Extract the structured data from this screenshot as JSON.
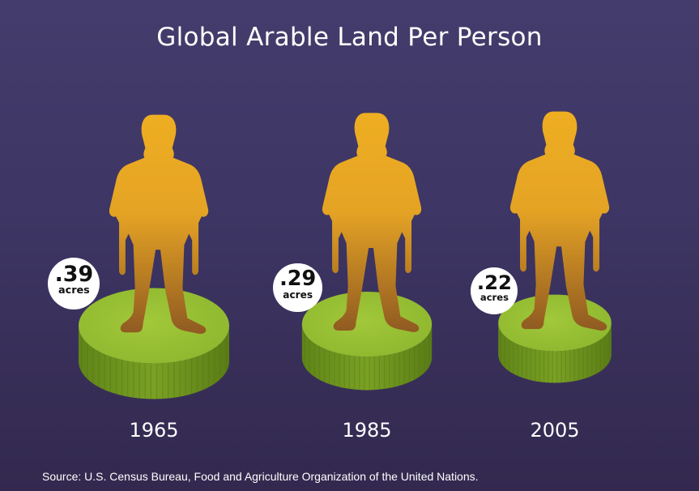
{
  "title": "Global Arable Land Per Person",
  "source": "Source: U.S. Census Bureau, Food and Agriculture Organization of the United Nations.",
  "colors": {
    "background_top": "#443c6c",
    "background_bottom": "#33294f",
    "land_top": "#97bf33",
    "land_side": "#6d9420",
    "person_top": "#eeae22",
    "person_bottom": "#8f5a22",
    "badge": "#ffffff"
  },
  "chart_data": {
    "type": "bar",
    "title": "Global Arable Land Per Person",
    "categories": [
      "1965",
      "1985",
      "2005"
    ],
    "values": [
      0.39,
      0.29,
      0.22
    ],
    "labels": [
      ".39",
      ".29",
      ".22"
    ],
    "unit": "acres",
    "xlabel": "",
    "ylabel": ""
  }
}
